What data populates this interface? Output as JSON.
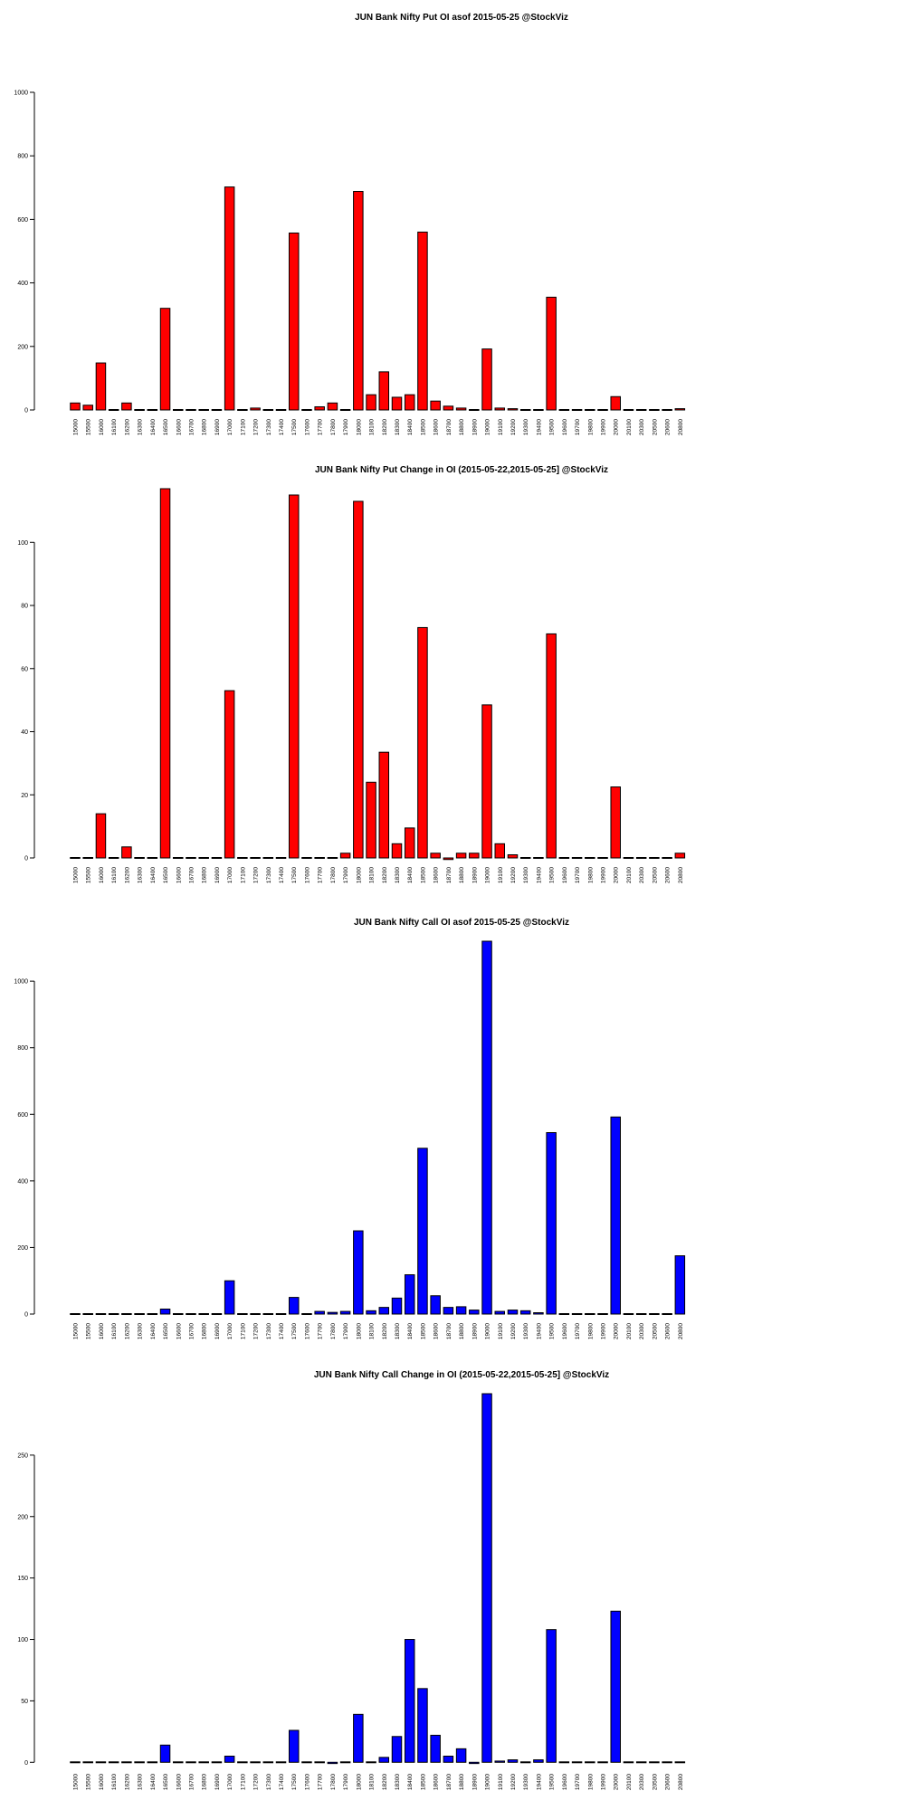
{
  "colors": {
    "put": "#ff0000",
    "call": "#0000ff",
    "stroke": "#000000"
  },
  "categories": [
    "15000",
    "15500",
    "16000",
    "16100",
    "16200",
    "16300",
    "16400",
    "16500",
    "16600",
    "16700",
    "16800",
    "16900",
    "17000",
    "17100",
    "17200",
    "17300",
    "17400",
    "17500",
    "17600",
    "17700",
    "17800",
    "17900",
    "18000",
    "18100",
    "18200",
    "18300",
    "18400",
    "18500",
    "18600",
    "18700",
    "18800",
    "18900",
    "19000",
    "19100",
    "19200",
    "19300",
    "19400",
    "19500",
    "19600",
    "19700",
    "19800",
    "19900",
    "20000",
    "20100",
    "20300",
    "20500",
    "20600",
    "20800"
  ],
  "chart_data": [
    {
      "type": "bar",
      "title": "JUN Bank Nifty Put OI asof 2015-05-25 @StockViz",
      "color": "#ff0000",
      "ylim": [
        0,
        1000
      ],
      "yticks": [
        0,
        200,
        400,
        600,
        800,
        1000
      ],
      "values": [
        22,
        15,
        148,
        2,
        22,
        1,
        1,
        320,
        1,
        1,
        1,
        1,
        702,
        1,
        6,
        1,
        1,
        557,
        1,
        10,
        22,
        1,
        688,
        48,
        120,
        40,
        48,
        560,
        28,
        12,
        6,
        1,
        192,
        6,
        4,
        1,
        1,
        355,
        1,
        1,
        1,
        1,
        42,
        1,
        1,
        1,
        1,
        4
      ]
    },
    {
      "type": "bar",
      "title": "JUN Bank Nifty Put Change in OI (2015-05-22,2015-05-25] @StockViz",
      "color": "#ff0000",
      "ylim": [
        0,
        117
      ],
      "yticks": [
        0,
        20,
        40,
        60,
        80,
        100
      ],
      "values": [
        0,
        0,
        14,
        0,
        3.5,
        0,
        0,
        117,
        0,
        0,
        0,
        0,
        53,
        0,
        0,
        0,
        0,
        115,
        0,
        0,
        0,
        1.5,
        113,
        24,
        33.5,
        4.5,
        9.5,
        73,
        1.5,
        -0.5,
        1.5,
        1.5,
        48.5,
        4.5,
        1,
        0,
        0,
        71,
        0,
        0,
        0,
        0,
        22.5,
        0,
        0,
        0,
        0,
        1.5
      ]
    },
    {
      "type": "bar",
      "title": "JUN Bank Nifty Call OI asof 2015-05-25 @StockViz",
      "color": "#0000ff",
      "ylim": [
        0,
        1120
      ],
      "yticks": [
        0,
        200,
        400,
        600,
        800,
        1000
      ],
      "values": [
        1,
        1,
        1,
        1,
        1,
        1,
        1,
        15,
        1,
        1,
        1,
        1,
        100,
        1,
        1,
        1,
        1,
        50,
        1,
        8,
        5,
        8,
        250,
        10,
        20,
        48,
        118,
        498,
        55,
        20,
        22,
        12,
        1120,
        8,
        12,
        10,
        4,
        545,
        1,
        1,
        1,
        1,
        592,
        1,
        1,
        1,
        1,
        175
      ]
    },
    {
      "type": "bar",
      "title": "JUN Bank Nifty Call Change in OI (2015-05-22,2015-05-25] @StockViz",
      "color": "#0000ff",
      "ylim": [
        -2,
        300
      ],
      "yticks": [
        0,
        50,
        100,
        150,
        200,
        250
      ],
      "values": [
        0,
        0,
        0,
        0,
        0,
        0,
        0,
        14,
        0,
        0,
        0,
        0,
        5,
        0,
        0,
        0,
        0,
        26,
        0,
        0,
        -1,
        0,
        39,
        0,
        4,
        21,
        100,
        60,
        22,
        5,
        11,
        -1,
        300,
        1,
        2,
        0,
        2,
        108,
        0,
        0,
        0,
        0,
        123,
        0,
        0,
        0,
        0,
        0
      ]
    }
  ]
}
